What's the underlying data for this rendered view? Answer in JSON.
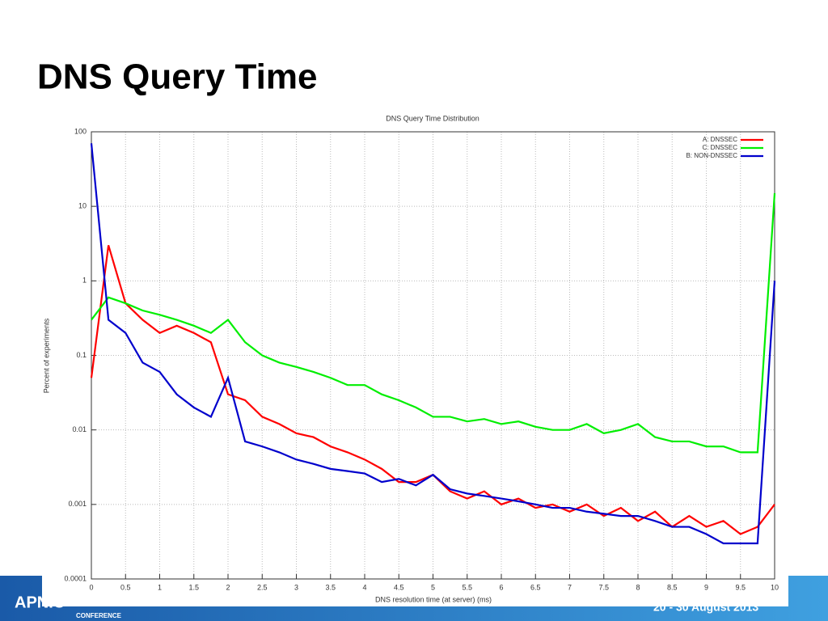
{
  "slide_title": "DNS Query Time",
  "footer": {
    "brand": "APNIC",
    "event": "CONFERENCE",
    "dates": "20 - 30 August 2013"
  },
  "chart_data": {
    "type": "line",
    "title": "DNS Query Time Distribution",
    "x_label": "DNS resolution time (at server) (ms)",
    "y_label": "Percent of experiments",
    "x": [
      0,
      0.25,
      0.5,
      0.75,
      1,
      1.25,
      1.5,
      1.75,
      2,
      2.25,
      2.5,
      2.75,
      3,
      3.25,
      3.5,
      3.75,
      4,
      4.25,
      4.5,
      4.75,
      5,
      5.25,
      5.5,
      5.75,
      6,
      6.25,
      6.5,
      6.75,
      7,
      7.25,
      7.5,
      7.75,
      8,
      8.25,
      8.5,
      8.75,
      9,
      9.25,
      9.5,
      9.75,
      10
    ],
    "series": [
      {
        "name": "A: DNSSEC",
        "color": "#ff0000",
        "values": [
          0.05,
          3,
          0.5,
          0.3,
          0.2,
          0.25,
          0.2,
          0.15,
          0.03,
          0.025,
          0.015,
          0.012,
          0.009,
          0.008,
          0.006,
          0.005,
          0.004,
          0.003,
          0.002,
          0.002,
          0.0025,
          0.0015,
          0.0012,
          0.0015,
          0.001,
          0.0012,
          0.0009,
          0.001,
          0.0008,
          0.001,
          0.0007,
          0.0009,
          0.0006,
          0.0008,
          0.0005,
          0.0007,
          0.0005,
          0.0006,
          0.0004,
          0.0005,
          0.001
        ]
      },
      {
        "name": "C: DNSSEC",
        "color": "#00ee00",
        "values": [
          0.3,
          0.6,
          0.5,
          0.4,
          0.35,
          0.3,
          0.25,
          0.2,
          0.3,
          0.15,
          0.1,
          0.08,
          0.07,
          0.06,
          0.05,
          0.04,
          0.04,
          0.03,
          0.025,
          0.02,
          0.015,
          0.015,
          0.013,
          0.014,
          0.012,
          0.013,
          0.011,
          0.01,
          0.01,
          0.012,
          0.009,
          0.01,
          0.012,
          0.008,
          0.007,
          0.007,
          0.006,
          0.006,
          0.005,
          0.005,
          15
        ]
      },
      {
        "name": "B: NON-DNSSEC",
        "color": "#0000cc",
        "values": [
          70,
          0.3,
          0.2,
          0.08,
          0.06,
          0.03,
          0.02,
          0.015,
          0.05,
          0.007,
          0.006,
          0.005,
          0.004,
          0.0035,
          0.003,
          0.0028,
          0.0026,
          0.002,
          0.0022,
          0.0018,
          0.0025,
          0.0016,
          0.0014,
          0.0013,
          0.0012,
          0.0011,
          0.001,
          0.0009,
          0.0009,
          0.0008,
          0.00075,
          0.0007,
          0.0007,
          0.0006,
          0.0005,
          0.0005,
          0.0004,
          0.0003,
          0.0003,
          0.0003,
          1
        ]
      }
    ],
    "xlim": [
      0,
      10
    ],
    "xticks": [
      0,
      0.5,
      1,
      1.5,
      2,
      2.5,
      3,
      3.5,
      4,
      4.5,
      5,
      5.5,
      6,
      6.5,
      7,
      7.5,
      8,
      8.5,
      9,
      9.5,
      10
    ],
    "ylim": [
      0.0001,
      100
    ],
    "yticks": [
      0.0001,
      0.001,
      0.01,
      0.1,
      1,
      10,
      100
    ],
    "log_y": true,
    "grid": true,
    "legend": "top-right"
  }
}
